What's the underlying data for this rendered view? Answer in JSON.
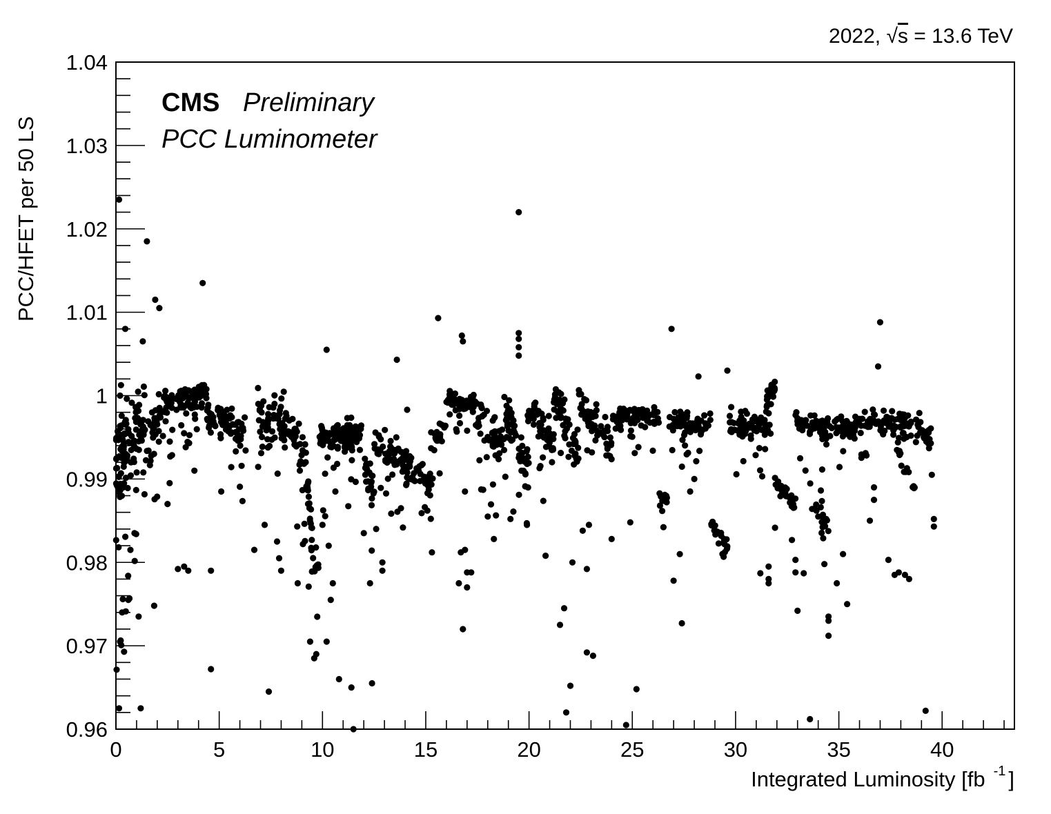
{
  "chart_data": {
    "type": "scatter",
    "energy_label": {
      "prefix": "2022, ",
      "sqrt_symbol": "√",
      "s": "s",
      "suffix": " = 13.6 TeV"
    },
    "experiment": "CMS",
    "status": "Preliminary",
    "subtitle": "PCC Luminometer",
    "xlabel": {
      "text": "Integrated Luminosity [fb",
      "superscript": "-1",
      "close": "]"
    },
    "ylabel": "PCC/HFET per 50 LS",
    "xlim": [
      0,
      43.5
    ],
    "ylim": [
      0.96,
      1.04
    ],
    "x_ticks": [
      "0",
      "5",
      "10",
      "15",
      "20",
      "25",
      "30",
      "35",
      "40"
    ],
    "y_ticks": [
      "0.96",
      "0.97",
      "0.98",
      "0.99",
      "1",
      "1.01",
      "1.02",
      "1.03",
      "1.04"
    ],
    "marker_color": "#000000",
    "segments": [
      [
        0.0,
        0.6,
        0.9915,
        0.995,
        0.006,
        70
      ],
      [
        0.6,
        1.4,
        0.9935,
        0.997,
        0.005,
        45
      ],
      [
        1.4,
        2.4,
        0.995,
        0.9985,
        0.003,
        40
      ],
      [
        2.4,
        4.4,
        0.9985,
        1.0005,
        0.0015,
        90
      ],
      [
        4.4,
        6.3,
        0.9975,
        0.9955,
        0.0018,
        70
      ],
      [
        6.8,
        7.6,
        0.999,
        0.994,
        0.003,
        30
      ],
      [
        7.6,
        9.0,
        0.998,
        0.994,
        0.0028,
        60
      ],
      [
        9.0,
        9.8,
        0.995,
        0.977,
        0.003,
        45
      ],
      [
        9.8,
        11.9,
        0.9945,
        0.9955,
        0.0022,
        110
      ],
      [
        12.0,
        12.5,
        0.993,
        0.9875,
        0.0025,
        25
      ],
      [
        12.5,
        15.3,
        0.9945,
        0.9895,
        0.002,
        110
      ],
      [
        15.2,
        16.0,
        0.9945,
        0.996,
        0.0015,
        20
      ],
      [
        16.0,
        17.5,
        0.9995,
        0.999,
        0.0013,
        60
      ],
      [
        17.5,
        18.8,
        0.9975,
        0.9935,
        0.0022,
        50
      ],
      [
        18.8,
        20.0,
        0.9985,
        0.991,
        0.0025,
        55
      ],
      [
        19.9,
        21.2,
        0.998,
        0.994,
        0.0022,
        55
      ],
      [
        21.2,
        22.4,
        0.9995,
        0.9935,
        0.0025,
        55
      ],
      [
        22.4,
        24.0,
        0.999,
        0.994,
        0.0022,
        60
      ],
      [
        24.0,
        26.3,
        0.9975,
        0.9975,
        0.0012,
        80
      ],
      [
        26.3,
        26.8,
        0.9885,
        0.987,
        0.0008,
        15
      ],
      [
        26.8,
        28.8,
        0.9972,
        0.9965,
        0.0012,
        65
      ],
      [
        28.8,
        29.6,
        0.9855,
        0.9815,
        0.0015,
        25
      ],
      [
        29.6,
        31.6,
        0.9965,
        0.9965,
        0.0015,
        75
      ],
      [
        31.5,
        31.9,
        0.9995,
        1.001,
        0.0012,
        25
      ],
      [
        31.9,
        33.0,
        0.9895,
        0.9865,
        0.0015,
        30
      ],
      [
        32.9,
        34.6,
        0.997,
        0.996,
        0.0015,
        55
      ],
      [
        33.6,
        34.6,
        0.9885,
        0.983,
        0.002,
        20
      ],
      [
        34.6,
        35.8,
        0.9965,
        0.996,
        0.0013,
        40
      ],
      [
        35.8,
        38.5,
        0.9972,
        0.9965,
        0.0012,
        90
      ],
      [
        37.8,
        38.7,
        0.994,
        0.989,
        0.0015,
        15
      ],
      [
        38.7,
        39.5,
        0.9965,
        0.9945,
        0.0012,
        30
      ]
    ],
    "outliers": [
      [
        0.15,
        1.0235
      ],
      [
        0.45,
        1.008
      ],
      [
        0.2,
        1.0
      ],
      [
        1.3,
        1.0065
      ],
      [
        1.5,
        1.0185
      ],
      [
        1.9,
        1.0115
      ],
      [
        2.1,
        1.0105
      ],
      [
        4.2,
        1.0135
      ],
      [
        0.15,
        0.9625
      ],
      [
        1.2,
        0.9625
      ],
      [
        0.2,
        0.9705
      ],
      [
        0.3,
        0.974
      ],
      [
        0.6,
        0.9755
      ],
      [
        0.7,
        0.9815
      ],
      [
        0.9,
        0.9835
      ],
      [
        1.1,
        0.9735
      ],
      [
        1.85,
        0.9748
      ],
      [
        2.5,
        0.987
      ],
      [
        2.6,
        0.9895
      ],
      [
        3.0,
        0.9792
      ],
      [
        3.3,
        0.9795
      ],
      [
        3.5,
        0.979
      ],
      [
        3.8,
        0.991
      ],
      [
        4.6,
        0.9672
      ],
      [
        4.6,
        0.979
      ],
      [
        5.1,
        0.9885
      ],
      [
        6.7,
        0.9815
      ],
      [
        7.4,
        0.9645
      ],
      [
        7.2,
        0.9845
      ],
      [
        7.8,
        0.9825
      ],
      [
        7.9,
        0.9805
      ],
      [
        8.0,
        0.979
      ],
      [
        8.8,
        0.9775
      ],
      [
        9.6,
        0.9685
      ],
      [
        9.7,
        0.969
      ],
      [
        9.4,
        0.9705
      ],
      [
        10.2,
        1.0055
      ],
      [
        10.0,
        0.9845
      ],
      [
        10.3,
        0.982
      ],
      [
        10.2,
        0.9705
      ],
      [
        10.5,
        0.9775
      ],
      [
        10.4,
        0.9755
      ],
      [
        10.8,
        0.966
      ],
      [
        11.4,
        0.965
      ],
      [
        11.5,
        0.96
      ],
      [
        12.4,
        0.9655
      ],
      [
        12.3,
        0.9775
      ],
      [
        12.0,
        0.9835
      ],
      [
        12.6,
        0.984
      ],
      [
        12.9,
        0.979
      ],
      [
        12.9,
        0.98
      ],
      [
        13.6,
        1.0043
      ],
      [
        13.8,
        0.9865
      ],
      [
        14.1,
        0.9983
      ],
      [
        14.8,
        0.9859
      ],
      [
        15.3,
        0.9812
      ],
      [
        15.6,
        1.0093
      ],
      [
        16.6,
        0.9775
      ],
      [
        16.7,
        0.9812
      ],
      [
        16.8,
        0.972
      ],
      [
        16.9,
        0.9815
      ],
      [
        17.0,
        0.977
      ],
      [
        17.0,
        0.9788
      ],
      [
        17.2,
        0.9788
      ],
      [
        16.8,
        1.0065
      ],
      [
        16.75,
        1.0072
      ],
      [
        16.9,
        0.9885
      ],
      [
        18.3,
        0.9828
      ],
      [
        18.0,
        0.9855
      ],
      [
        19.1,
        0.9852
      ],
      [
        19.5,
        1.022
      ],
      [
        19.5,
        1.0075
      ],
      [
        19.5,
        1.0068
      ],
      [
        19.5,
        1.0058
      ],
      [
        19.5,
        1.0048
      ],
      [
        19.9,
        0.9845
      ],
      [
        20.8,
        0.9808
      ],
      [
        21.5,
        0.9725
      ],
      [
        21.7,
        0.9745
      ],
      [
        21.8,
        0.962
      ],
      [
        22.0,
        0.9652
      ],
      [
        22.1,
        0.98
      ],
      [
        22.6,
        0.9838
      ],
      [
        22.8,
        0.9792
      ],
      [
        22.9,
        0.9845
      ],
      [
        22.8,
        0.9692
      ],
      [
        23.1,
        0.9688
      ],
      [
        24.0,
        0.9828
      ],
      [
        24.7,
        0.9605
      ],
      [
        24.9,
        0.9848
      ],
      [
        25.2,
        0.9648
      ],
      [
        26.9,
        1.008
      ],
      [
        27.0,
        0.9778
      ],
      [
        27.3,
        0.981
      ],
      [
        27.4,
        0.9727
      ],
      [
        27.8,
        0.9885
      ],
      [
        28.0,
        0.99
      ],
      [
        28.2,
        1.0023
      ],
      [
        29.6,
        1.003
      ],
      [
        31.2,
        0.9787
      ],
      [
        31.6,
        0.978
      ],
      [
        31.6,
        0.9795
      ],
      [
        31.6,
        0.9775
      ],
      [
        32.9,
        0.9788
      ],
      [
        32.9,
        0.9803
      ],
      [
        33.0,
        0.9742
      ],
      [
        33.3,
        0.9787
      ],
      [
        33.6,
        0.9612
      ],
      [
        34.0,
        0.9855
      ],
      [
        34.3,
        0.9798
      ],
      [
        34.5,
        0.973
      ],
      [
        34.5,
        0.9712
      ],
      [
        34.5,
        0.9735
      ],
      [
        34.9,
        0.9775
      ],
      [
        35.2,
        0.981
      ],
      [
        35.4,
        0.975
      ],
      [
        36.5,
        0.985
      ],
      [
        36.9,
        1.0035
      ],
      [
        37.0,
        1.0088
      ],
      [
        38.2,
        0.9785
      ],
      [
        37.7,
        0.9785
      ],
      [
        37.9,
        0.9788
      ],
      [
        37.4,
        0.9803
      ],
      [
        38.4,
        0.978
      ],
      [
        39.2,
        0.9622
      ],
      [
        39.6,
        0.9852
      ],
      [
        39.6,
        0.9843
      ],
      [
        39.5,
        0.9905
      ],
      [
        36.7,
        0.989
      ],
      [
        36.7,
        0.9875
      ]
    ]
  }
}
